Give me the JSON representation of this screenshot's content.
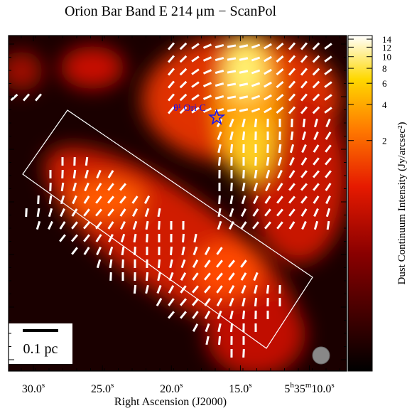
{
  "chart_data": {
    "type": "image",
    "title": "Orion Bar Band E 214 μm − ScanPol",
    "x_label": "Right Ascension (J2000)",
    "xlim": [
      31.8,
      7.3
    ],
    "xticks": [
      {
        "value": 30,
        "label": "30.0s"
      },
      {
        "value": 25,
        "label": "25.0s"
      },
      {
        "value": 20,
        "label": "20.0s"
      },
      {
        "value": 15,
        "label": "15.0s"
      },
      {
        "value": 10,
        "label": "5h35m10.0s"
      }
    ],
    "colorbar_label": "Dust Continuum Intensity (Jy/arcsec²)",
    "clim": [
      0.024,
      15
    ],
    "log_scale": true,
    "cticks": [
      2,
      4,
      6,
      8,
      10,
      12,
      14
    ],
    "star_label": "θ¹ Ori C",
    "scale_bar_label": "0.1 pc"
  }
}
